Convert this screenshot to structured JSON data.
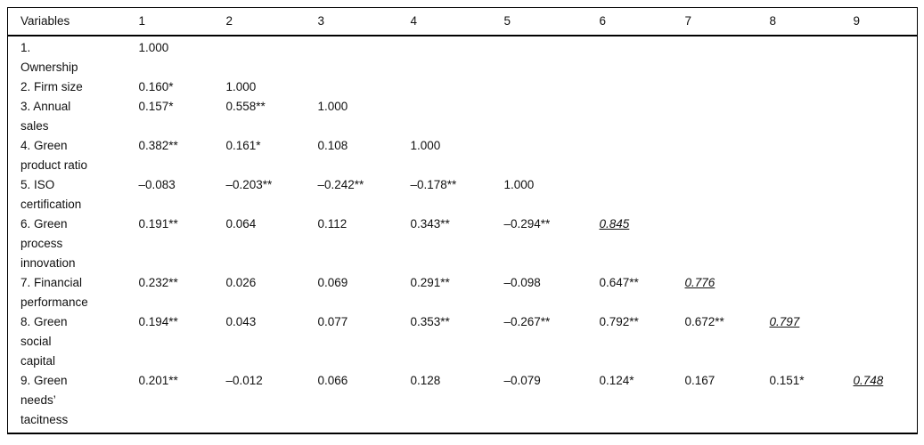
{
  "colors": {
    "background": "#ffffff",
    "text": "#111111",
    "rule": "#000000"
  },
  "table": {
    "title": "correlation-matrix",
    "header": [
      "Variables",
      "1",
      "2",
      "3",
      "4",
      "5",
      "6",
      "7",
      "8",
      "9"
    ],
    "rows": [
      {
        "label_lines": [
          "1.",
          "Ownership"
        ],
        "values": [
          "1.000",
          "",
          "",
          "",
          "",
          "",
          "",
          "",
          ""
        ]
      },
      {
        "label_lines": [
          "2. Firm size"
        ],
        "values": [
          "0.160*",
          "1.000",
          "",
          "",
          "",
          "",
          "",
          "",
          ""
        ]
      },
      {
        "label_lines": [
          "3. Annual",
          "sales"
        ],
        "values": [
          "0.157*",
          "0.558**",
          "1.000",
          "",
          "",
          "",
          "",
          "",
          ""
        ]
      },
      {
        "label_lines": [
          "4. Green",
          "product ratio"
        ],
        "values": [
          "0.382**",
          "0.161*",
          "0.108",
          "1.000",
          "",
          "",
          "",
          "",
          ""
        ]
      },
      {
        "label_lines": [
          "5. ISO",
          "certification"
        ],
        "values": [
          "–0.083",
          "–0.203**",
          "–0.242**",
          "–0.178**",
          "1.000",
          "",
          "",
          "",
          ""
        ]
      },
      {
        "label_lines": [
          "6. Green",
          "process",
          "innovation"
        ],
        "values": [
          "0.191**",
          "0.064",
          "0.112",
          "0.343**",
          "–0.294**",
          {
            "text": "0.845",
            "emphasis": true
          },
          "",
          "",
          ""
        ]
      },
      {
        "label_lines": [
          "7. Financial",
          "performance"
        ],
        "values": [
          "0.232**",
          "0.026",
          "0.069",
          "0.291**",
          "–0.098",
          "0.647**",
          {
            "text": "0.776",
            "emphasis": true
          },
          "",
          ""
        ]
      },
      {
        "label_lines": [
          "8. Green",
          "social",
          "capital"
        ],
        "values": [
          "0.194**",
          "0.043",
          "0.077",
          "0.353**",
          "–0.267**",
          "0.792**",
          "0.672**",
          {
            "text": "0.797",
            "emphasis": true
          },
          ""
        ]
      },
      {
        "label_lines": [
          "9. Green",
          "needs’",
          "tacitness"
        ],
        "values": [
          "0.201**",
          "–0.012",
          "0.066",
          "0.128",
          "–0.079",
          "0.124*",
          "0.167",
          "0.151*",
          {
            "text": "0.748",
            "emphasis": true
          }
        ]
      }
    ]
  }
}
